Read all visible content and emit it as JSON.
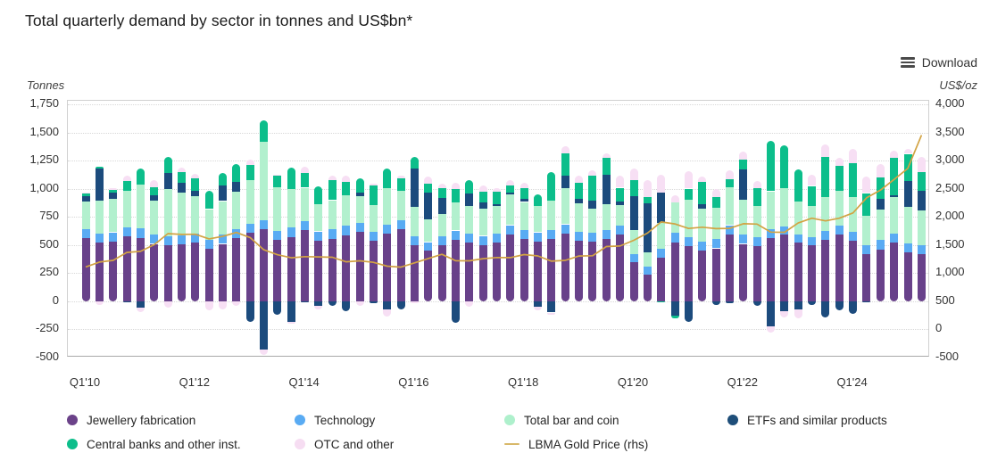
{
  "title": "Total quarterly demand by sector in tonnes and US$bn*",
  "toolbar": {
    "download_label": "Download"
  },
  "left_axis_unit": "Tonnes",
  "right_axis_unit": "US$/oz",
  "legend": {
    "items": [
      {
        "label": "Jewellery fabrication",
        "color": "#6B4289",
        "marker": "dot",
        "row": 0,
        "col": 0
      },
      {
        "label": "Technology",
        "color": "#59ABF3",
        "marker": "dot",
        "row": 0,
        "col": 1
      },
      {
        "label": "Total bar and coin",
        "color": "#AEF0CC",
        "marker": "dot",
        "row": 0,
        "col": 2
      },
      {
        "label": "ETFs and similar products",
        "color": "#1E4E79",
        "marker": "dot",
        "row": 0,
        "col": 3
      },
      {
        "label": "Central banks and other inst.",
        "color": "#0DBE8B",
        "marker": "dot",
        "row": 1,
        "col": 0
      },
      {
        "label": "OTC and other",
        "color": "#F6DDF2",
        "marker": "dot",
        "row": 1,
        "col": 1
      },
      {
        "label": "LBMA Gold Price (rhs)",
        "color": "#D8B869",
        "marker": "line",
        "row": 1,
        "col": 2
      }
    ]
  },
  "chart_data": {
    "type": "bar",
    "subtype": "stacked-bars-with-line",
    "grid": "horizontal-dotted",
    "left_axis": {
      "label": "Tonnes",
      "min": -500,
      "max": 1750,
      "step": 250,
      "ticks": [
        "1,750",
        "1,500",
        "1,250",
        "1,000",
        "750",
        "500",
        "250",
        "0",
        "-250",
        "-500"
      ]
    },
    "right_axis": {
      "label": "US$/oz",
      "min": -500,
      "max": 4000,
      "step": 500,
      "ticks": [
        "4,000",
        "3,500",
        "3,000",
        "2,500",
        "2,000",
        "1,500",
        "1,000",
        "500",
        "0",
        "-500"
      ]
    },
    "x_visible_ticks": [
      "Q1'10",
      "Q1'12",
      "Q1'14",
      "Q1'16",
      "Q1'18",
      "Q1'20",
      "Q1'22",
      "Q1'24"
    ],
    "x_tick_every": 8,
    "x": [
      "Q1'10",
      "Q2'10",
      "Q3'10",
      "Q4'10",
      "Q1'11",
      "Q2'11",
      "Q3'11",
      "Q4'11",
      "Q1'12",
      "Q2'12",
      "Q3'12",
      "Q4'12",
      "Q1'13",
      "Q2'13",
      "Q3'13",
      "Q4'13",
      "Q1'14",
      "Q2'14",
      "Q3'14",
      "Q4'14",
      "Q1'15",
      "Q2'15",
      "Q3'15",
      "Q4'15",
      "Q1'16",
      "Q2'16",
      "Q3'16",
      "Q4'16",
      "Q1'17",
      "Q2'17",
      "Q3'17",
      "Q4'17",
      "Q1'18",
      "Q2'18",
      "Q3'18",
      "Q4'18",
      "Q1'19",
      "Q2'19",
      "Q3'19",
      "Q4'19",
      "Q1'20",
      "Q2'20",
      "Q3'20",
      "Q4'20",
      "Q1'21",
      "Q2'21",
      "Q3'21",
      "Q4'21",
      "Q1'22",
      "Q2'22",
      "Q3'22",
      "Q4'22",
      "Q1'23",
      "Q2'23",
      "Q3'23",
      "Q4'23",
      "Q1'24",
      "Q2'24",
      "Q3'24",
      "Q4'24",
      "Q1'25",
      "Q2'25"
    ],
    "series": [
      {
        "name": "Jewellery fabrication",
        "color": "#68418A",
        "values": [
          560,
          520,
          530,
          575,
          565,
          510,
          495,
          505,
          520,
          470,
          510,
          560,
          610,
          640,
          545,
          570,
          630,
          540,
          555,
          585,
          615,
          535,
          600,
          640,
          500,
          450,
          500,
          550,
          520,
          500,
          520,
          590,
          550,
          530,
          550,
          600,
          540,
          530,
          550,
          590,
          345,
          240,
          390,
          525,
          490,
          450,
          470,
          590,
          510,
          490,
          560,
          590,
          520,
          500,
          550,
          590,
          535,
          420,
          460,
          520,
          435,
          420
        ]
      },
      {
        "name": "Technology",
        "color": "#59ABF3",
        "values": [
          79,
          81,
          83,
          84,
          82,
          84,
          83,
          81,
          80,
          79,
          80,
          81,
          79,
          80,
          81,
          84,
          79,
          81,
          83,
          84,
          80,
          81,
          83,
          80,
          76,
          76,
          77,
          79,
          79,
          81,
          84,
          86,
          82,
          83,
          85,
          84,
          79,
          81,
          83,
          84,
          71,
          67,
          77,
          84,
          81,
          80,
          84,
          86,
          82,
          78,
          77,
          72,
          70,
          70,
          75,
          82,
          79,
          81,
          83,
          84,
          80,
          79
        ]
      },
      {
        "name": "Total bar and coin",
        "color": "#B2F0CE",
        "values": [
          245,
          290,
          300,
          320,
          390,
          300,
          420,
          380,
          330,
          270,
          300,
          330,
          390,
          700,
          390,
          340,
          300,
          240,
          260,
          270,
          240,
          240,
          320,
          260,
          260,
          200,
          200,
          250,
          250,
          240,
          240,
          270,
          250,
          230,
          260,
          320,
          250,
          210,
          230,
          180,
          220,
          130,
          230,
          270,
          330,
          290,
          280,
          340,
          310,
          280,
          340,
          340,
          300,
          280,
          300,
          310,
          310,
          260,
          270,
          320,
          320,
          310
        ]
      },
      {
        "name": "ETFs and similar products",
        "color": "#1C4B7D",
        "values": [
          50,
          290,
          50,
          -10,
          -60,
          50,
          140,
          90,
          50,
          0,
          140,
          90,
          -180,
          -430,
          -120,
          -180,
          -10,
          -40,
          -40,
          -90,
          30,
          -20,
          -70,
          -70,
          340,
          240,
          140,
          -190,
          110,
          60,
          20,
          20,
          30,
          -50,
          -100,
          110,
          40,
          70,
          260,
          30,
          300,
          430,
          270,
          -130,
          -180,
          40,
          -30,
          -20,
          270,
          -40,
          -220,
          -90,
          -70,
          -30,
          -140,
          -80,
          -110,
          -10,
          95,
          20,
          230,
          170
        ]
      },
      {
        "name": "Central banks and other inst.",
        "color": "#0CBE8B",
        "values": [
          20,
          15,
          25,
          90,
          140,
          70,
          145,
          95,
          115,
          160,
          110,
          160,
          130,
          185,
          100,
          190,
          130,
          160,
          175,
          120,
          130,
          170,
          180,
          110,
          110,
          80,
          85,
          115,
          115,
          95,
          110,
          60,
          90,
          110,
          250,
          200,
          145,
          225,
          155,
          125,
          140,
          60,
          -10,
          -20,
          100,
          200,
          90,
          65,
          85,
          160,
          445,
          380,
          285,
          175,
          360,
          220,
          300,
          200,
          190,
          330,
          245,
          165
        ]
      },
      {
        "name": "OTC and other",
        "color": "#F7DFF4",
        "values": [
          10,
          -30,
          20,
          50,
          -40,
          60,
          -60,
          40,
          40,
          -80,
          -70,
          -40,
          50,
          -45,
          10,
          -20,
          60,
          -30,
          40,
          60,
          -40,
          20,
          -70,
          30,
          -20,
          60,
          40,
          60,
          -50,
          50,
          30,
          50,
          50,
          -30,
          -20,
          60,
          60,
          50,
          40,
          110,
          100,
          150,
          160,
          60,
          155,
          50,
          70,
          80,
          75,
          60,
          -60,
          -55,
          -80,
          100,
          110,
          70,
          130,
          150,
          120,
          60,
          40,
          140
        ]
      }
    ],
    "line": {
      "name": "LBMA Gold Price (rhs)",
      "color": "#D2A343",
      "axis": "right",
      "values": [
        1110,
        1197,
        1227,
        1367,
        1386,
        1506,
        1702,
        1688,
        1691,
        1609,
        1652,
        1722,
        1632,
        1415,
        1326,
        1272,
        1293,
        1288,
        1282,
        1201,
        1218,
        1192,
        1124,
        1106,
        1183,
        1260,
        1335,
        1220,
        1219,
        1257,
        1278,
        1275,
        1329,
        1306,
        1213,
        1226,
        1304,
        1309,
        1472,
        1481,
        1583,
        1711,
        1909,
        1874,
        1794,
        1816,
        1790,
        1795,
        1877,
        1871,
        1729,
        1725,
        1890,
        1976,
        1928,
        1976,
        2070,
        2338,
        2474,
        2664,
        2860,
        3450
      ]
    }
  }
}
